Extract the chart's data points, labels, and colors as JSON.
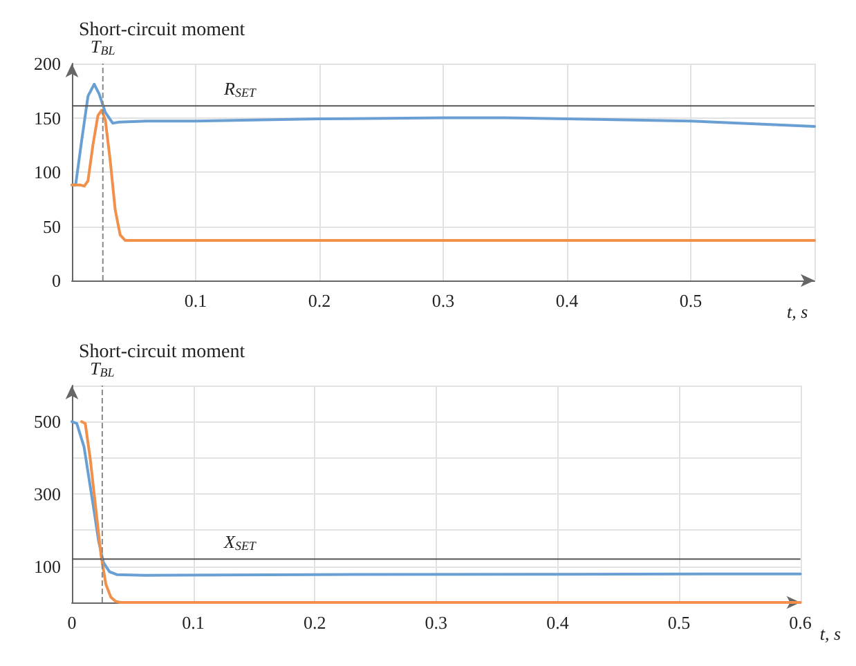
{
  "chart_data": [
    {
      "type": "line",
      "title": "Short-circuit moment",
      "xlabel": "t, s",
      "xlim": [
        0,
        0.6
      ],
      "xticks": [
        0.1,
        0.2,
        0.3,
        0.4,
        0.5,
        {
          "value": 0.6,
          "label": null
        }
      ],
      "ylim": [
        0,
        200
      ],
      "yticks": [
        0,
        50,
        100,
        150,
        200
      ],
      "grid": true,
      "marker": "none",
      "line_style": "solid",
      "series": [
        {
          "color": "#6a9fd4",
          "x": [
            0,
            0.003,
            0.008,
            0.013,
            0.018,
            0.022,
            0.027,
            0.033,
            0.038,
            0.06,
            0.1,
            0.2,
            0.3,
            0.35,
            0.4,
            0.5,
            0.6
          ],
          "values": [
            88,
            88,
            130,
            170,
            181,
            172,
            155,
            145,
            146,
            147,
            147,
            149,
            150,
            150,
            149,
            147,
            142
          ]
        },
        {
          "color": "#f0904a",
          "x": [
            0,
            0.007,
            0.01,
            0.013,
            0.017,
            0.021,
            0.024,
            0.027,
            0.031,
            0.035,
            0.039,
            0.043,
            0.1,
            0.6
          ],
          "values": [
            88,
            88,
            87,
            92,
            125,
            152,
            157,
            148,
            110,
            65,
            42,
            37,
            37,
            37
          ]
        }
      ],
      "ref_lines": [
        {
          "axis": "y",
          "value": 161,
          "label": "R$_{SET}$",
          "color": "#555555",
          "line_style": "solid"
        },
        {
          "axis": "x",
          "value": 0.025,
          "label": "T$_{BL}$",
          "color": "#888888",
          "line_style": "dashed"
        }
      ]
    },
    {
      "type": "line",
      "title": "Short-circuit moment",
      "xlabel": "t, s",
      "xlim": [
        0,
        0.6
      ],
      "xticks": [
        0,
        0.1,
        0.2,
        0.3,
        0.4,
        0.5,
        0.6
      ],
      "ylim": [
        0,
        600
      ],
      "yticks": [
        {
          "value": 0,
          "label": null
        },
        100,
        {
          "value": 200,
          "label": null
        },
        300,
        {
          "value": 400,
          "label": null
        },
        500,
        {
          "value": 600,
          "label": null
        }
      ],
      "grid": true,
      "marker": "none",
      "line_style": "solid",
      "series": [
        {
          "color": "#6a9fd4",
          "x": [
            0,
            0.004,
            0.01,
            0.017,
            0.022,
            0.026,
            0.031,
            0.037,
            0.06,
            0.2,
            0.4,
            0.6
          ],
          "values": [
            500,
            495,
            430,
            280,
            170,
            110,
            85,
            77,
            75,
            77,
            78,
            79
          ]
        },
        {
          "color": "#f0904a",
          "x": [
            0.008,
            0.011,
            0.015,
            0.02,
            0.024,
            0.028,
            0.032,
            0.036,
            0.04,
            0.6
          ],
          "values": [
            500,
            495,
            400,
            250,
            130,
            50,
            15,
            3,
            0,
            0
          ]
        }
      ],
      "ref_lines": [
        {
          "axis": "y",
          "value": 120,
          "label": "X$_{SET}$",
          "color": "#555555",
          "line_style": "solid"
        },
        {
          "axis": "x",
          "value": 0.025,
          "label": "T$_{BL}$",
          "color": "#888888",
          "line_style": "dashed"
        }
      ]
    }
  ]
}
